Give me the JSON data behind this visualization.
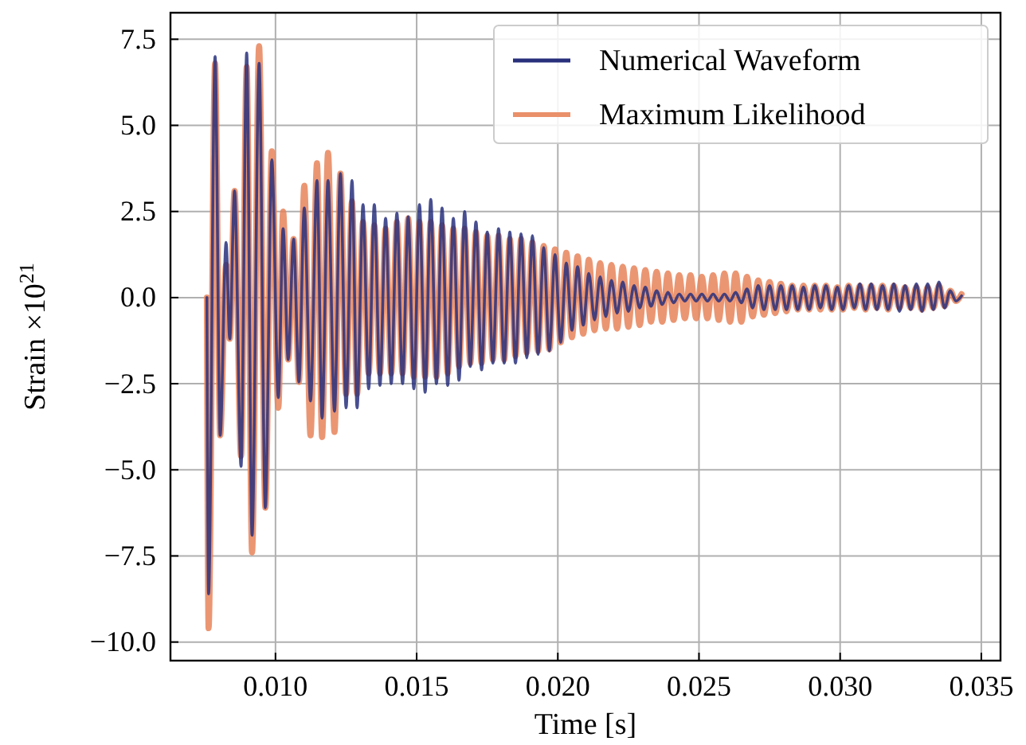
{
  "chart_data": {
    "type": "line",
    "xlabel": "Time [s]",
    "ylabel": "Strain ×10$^{21}$",
    "x": [
      0.00757,
      0.00763,
      0.00786,
      0.00804,
      0.00825,
      0.00838,
      0.00855,
      0.00878,
      0.00898,
      0.00917,
      0.00942,
      0.00964,
      0.00987,
      0.0101,
      0.01027,
      0.01045,
      0.01064,
      0.01083,
      0.01102,
      0.01124,
      0.01147,
      0.01165,
      0.01186,
      0.01209,
      0.0123,
      0.0125,
      0.01271,
      0.01289,
      0.0131,
      0.0133,
      0.0135,
      0.0137,
      0.0139,
      0.0141,
      0.0143,
      0.0145,
      0.0147,
      0.0149,
      0.0151,
      0.0153,
      0.0155,
      0.0157,
      0.0159,
      0.0161,
      0.0163,
      0.0165,
      0.0167,
      0.0169,
      0.0171,
      0.0173,
      0.0175,
      0.0177,
      0.0179,
      0.0181,
      0.0183,
      0.0185,
      0.0187,
      0.0189,
      0.0191,
      0.0193,
      0.0195,
      0.0197,
      0.0199,
      0.0201,
      0.0203,
      0.0205,
      0.0207,
      0.0209,
      0.0211,
      0.0213,
      0.0215,
      0.0217,
      0.0219,
      0.0221,
      0.0223,
      0.0225,
      0.0227,
      0.0229,
      0.0231,
      0.0233,
      0.0235,
      0.0237,
      0.0239,
      0.0241,
      0.0243,
      0.0245,
      0.0247,
      0.0249,
      0.0251,
      0.0253,
      0.0255,
      0.0257,
      0.0259,
      0.0261,
      0.0263,
      0.0265,
      0.0267,
      0.0269,
      0.0271,
      0.0273,
      0.0275,
      0.0277,
      0.0279,
      0.0281,
      0.0283,
      0.0285,
      0.0287,
      0.0289,
      0.0291,
      0.0293,
      0.0295,
      0.0297,
      0.0299,
      0.0301,
      0.0303,
      0.0305,
      0.0307,
      0.0309,
      0.0311,
      0.0313,
      0.0315,
      0.0317,
      0.0319,
      0.0321,
      0.0323,
      0.0325,
      0.0327,
      0.0329,
      0.0331,
      0.0333,
      0.0335,
      0.0337,
      0.0339,
      0.0341,
      0.0343
    ],
    "series": [
      {
        "name": "Numerical Waveform",
        "color": "#28307c",
        "values": [
          0,
          -8.6,
          7.0,
          -4.0,
          1.6,
          -1.2,
          3.1,
          -4.9,
          7.1,
          -6.9,
          6.8,
          -6.1,
          4.0,
          -2.9,
          2.0,
          -1.8,
          1.7,
          -2.45,
          2.6,
          -3.0,
          3.4,
          -3.5,
          3.4,
          -3.3,
          3.6,
          -3.2,
          3.4,
          -3.2,
          2.7,
          -2.65,
          2.7,
          -2.55,
          2.3,
          -2.5,
          2.45,
          -2.5,
          2.35,
          -2.65,
          2.7,
          -2.75,
          2.85,
          -2.5,
          2.6,
          -2.55,
          2.3,
          -2.4,
          2.5,
          -2.0,
          2.2,
          -2.1,
          1.9,
          -1.9,
          2.0,
          -1.9,
          1.9,
          -1.9,
          1.85,
          -1.75,
          1.8,
          -1.65,
          1.45,
          -1.55,
          1.25,
          -1.3,
          1.0,
          -0.95,
          0.9,
          -0.8,
          0.7,
          -0.65,
          0.6,
          -0.55,
          0.5,
          -0.45,
          0.45,
          -0.4,
          0.35,
          -0.3,
          0.3,
          -0.25,
          0.2,
          -0.2,
          0.15,
          -0.15,
          0.1,
          -0.1,
          0.1,
          -0.1,
          0.1,
          -0.1,
          0.1,
          -0.1,
          0.1,
          -0.1,
          0.15,
          -0.15,
          0.25,
          -0.3,
          0.35,
          -0.35,
          0.35,
          -0.35,
          0.35,
          -0.35,
          0.35,
          -0.35,
          0.3,
          -0.35,
          0.35,
          -0.3,
          0.35,
          -0.35,
          0.3,
          -0.35,
          0.35,
          -0.3,
          0.4,
          -0.35,
          0.4,
          -0.35,
          0.35,
          -0.35,
          0.4,
          -0.4,
          0.35,
          -0.35,
          0.4,
          -0.4,
          0.4,
          -0.35,
          0.45,
          -0.3,
          0.2,
          -0.1,
          0.05
        ]
      },
      {
        "name": "Maximum Likelihood",
        "color": "#e8845a",
        "values": [
          0,
          -9.6,
          6.8,
          -4.0,
          0.95,
          -1.2,
          3.1,
          -4.6,
          6.7,
          -7.4,
          7.3,
          -6.1,
          4.25,
          -3.2,
          2.5,
          -1.8,
          1.7,
          -2.45,
          3.25,
          -4.0,
          3.9,
          -4.05,
          4.2,
          -3.9,
          3.6,
          -2.8,
          2.8,
          -2.8,
          2.2,
          -2.2,
          2.1,
          -2.2,
          2.0,
          -2.2,
          2.2,
          -2.2,
          2.3,
          -2.3,
          2.2,
          -2.3,
          2.2,
          -2.3,
          2.1,
          -2.2,
          2.0,
          -2.0,
          2.0,
          -1.9,
          1.9,
          -1.9,
          1.8,
          -1.8,
          1.8,
          -1.8,
          1.7,
          -1.7,
          1.7,
          -1.6,
          1.6,
          -1.55,
          1.5,
          -1.5,
          1.4,
          -1.3,
          1.3,
          -1.15,
          1.2,
          -1.05,
          1.1,
          -0.95,
          1.0,
          -0.9,
          0.95,
          -0.9,
          0.9,
          -0.85,
          0.85,
          -0.8,
          0.8,
          -0.7,
          0.75,
          -0.7,
          0.7,
          -0.65,
          0.65,
          -0.6,
          0.65,
          -0.6,
          0.6,
          -0.6,
          0.65,
          -0.65,
          0.7,
          -0.7,
          0.7,
          -0.7,
          0.6,
          -0.55,
          0.5,
          -0.5,
          0.45,
          -0.45,
          0.4,
          -0.4,
          0.35,
          -0.35,
          0.35,
          -0.35,
          0.35,
          -0.35,
          0.35,
          -0.35,
          0.3,
          -0.35,
          0.35,
          -0.3,
          0.35,
          -0.35,
          0.35,
          -0.3,
          0.35,
          -0.35,
          0.35,
          -0.3,
          0.3,
          -0.3,
          0.3,
          -0.35,
          0.3,
          -0.3,
          0.35,
          -0.25,
          0.2,
          -0.1,
          0.1
        ]
      }
    ],
    "xlim": [
      0.00628,
      0.03568
    ],
    "xticks": [
      {
        "value": 0.01,
        "label": "0.010"
      },
      {
        "value": 0.015,
        "label": "0.015"
      },
      {
        "value": 0.02,
        "label": "0.020"
      },
      {
        "value": 0.025,
        "label": "0.025"
      },
      {
        "value": 0.03,
        "label": "0.030"
      },
      {
        "value": 0.035,
        "label": "0.035"
      }
    ],
    "ylim": [
      -10.54,
      8.27
    ],
    "yticks": [
      {
        "value": -10,
        "label": "−10.0"
      },
      {
        "value": -7.5,
        "label": "−7.5"
      },
      {
        "value": -5,
        "label": "−5.0"
      },
      {
        "value": -2.5,
        "label": "−2.5"
      },
      {
        "value": 0,
        "label": "0.0"
      },
      {
        "value": 2.5,
        "label": "2.5"
      },
      {
        "value": 5,
        "label": "5.0"
      },
      {
        "value": 7.5,
        "label": "7.5"
      }
    ],
    "grid": true,
    "legend": "top right"
  }
}
